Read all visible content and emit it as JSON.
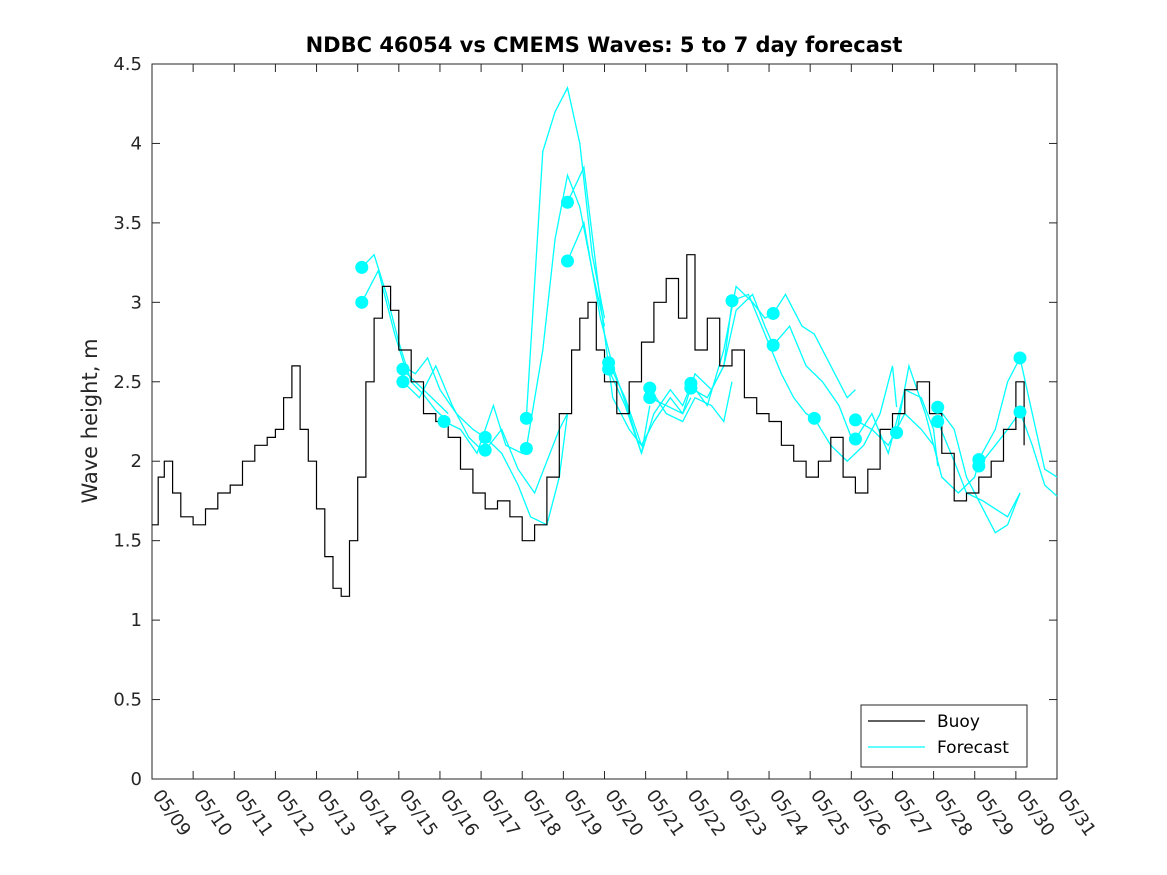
{
  "chart_data": {
    "type": "line",
    "title": "NDBC 46054 vs CMEMS Waves: 5 to 7 day forecast",
    "xlabel": "",
    "ylabel": "Wave height, m",
    "x_range": [
      0,
      22
    ],
    "ylim": [
      0,
      4.5
    ],
    "y_ticks": [
      0,
      0.5,
      1,
      1.5,
      2,
      2.5,
      3,
      3.5,
      4,
      4.5
    ],
    "y_tick_labels": [
      "0",
      "0.5",
      "1",
      "1.5",
      "2",
      "2.5",
      "3",
      "3.5",
      "4",
      "4.5"
    ],
    "x_ticks": [
      0,
      1,
      2,
      3,
      4,
      5,
      6,
      7,
      8,
      9,
      10,
      11,
      12,
      13,
      14,
      15,
      16,
      17,
      18,
      19,
      20,
      21,
      22
    ],
    "x_tick_labels": [
      "05/09",
      "05/10",
      "05/11",
      "05/12",
      "05/13",
      "05/14",
      "05/15",
      "05/16",
      "05/17",
      "05/18",
      "05/19",
      "05/20",
      "05/21",
      "05/22",
      "05/23",
      "05/24",
      "05/25",
      "05/26",
      "05/27",
      "05/28",
      "05/29",
      "05/30",
      "05/31"
    ],
    "grid": false,
    "legend_position": "bottom-right",
    "colors": {
      "buoy": "#000000",
      "forecast": "#00FFFF",
      "axis": "#262626"
    },
    "legend": [
      {
        "label": "Buoy",
        "color": "#000000"
      },
      {
        "label": "Forecast",
        "color": "#00FFFF"
      }
    ],
    "buoy": {
      "name": "Buoy",
      "t": [
        0,
        0.15,
        0.3,
        0.5,
        0.7,
        1.0,
        1.3,
        1.6,
        1.9,
        2.2,
        2.5,
        2.8,
        3.0,
        3.2,
        3.4,
        3.6,
        3.8,
        4.0,
        4.2,
        4.4,
        4.6,
        4.8,
        5.0,
        5.2,
        5.4,
        5.6,
        5.8,
        6.0,
        6.3,
        6.6,
        6.9,
        7.2,
        7.5,
        7.8,
        8.1,
        8.4,
        8.7,
        9.0,
        9.3,
        9.6,
        9.9,
        10.2,
        10.4,
        10.6,
        10.8,
        11.0,
        11.3,
        11.6,
        11.9,
        12.2,
        12.5,
        12.8,
        13.0,
        13.2,
        13.5,
        13.8,
        14.1,
        14.4,
        14.7,
        15.0,
        15.3,
        15.6,
        15.9,
        16.2,
        16.5,
        16.8,
        17.1,
        17.4,
        17.7,
        18.0,
        18.3,
        18.6,
        18.9,
        19.2,
        19.5,
        19.8,
        20.1,
        20.4,
        20.7,
        21.0,
        21.2
      ],
      "values": [
        1.6,
        1.9,
        2.0,
        1.8,
        1.65,
        1.6,
        1.7,
        1.8,
        1.85,
        2.0,
        2.1,
        2.15,
        2.2,
        2.4,
        2.6,
        2.2,
        2.0,
        1.7,
        1.4,
        1.2,
        1.15,
        1.5,
        1.9,
        2.5,
        2.9,
        3.1,
        2.95,
        2.7,
        2.5,
        2.3,
        2.25,
        2.15,
        1.95,
        1.8,
        1.7,
        1.75,
        1.65,
        1.5,
        1.6,
        1.9,
        2.3,
        2.7,
        2.9,
        3.0,
        2.7,
        2.5,
        2.3,
        2.5,
        2.75,
        3.0,
        3.15,
        2.9,
        3.3,
        2.7,
        2.9,
        2.6,
        2.7,
        2.4,
        2.3,
        2.25,
        2.1,
        2.0,
        1.9,
        2.0,
        2.15,
        1.9,
        1.8,
        1.95,
        2.2,
        2.3,
        2.45,
        2.5,
        2.3,
        2.05,
        1.75,
        1.8,
        1.9,
        2.0,
        2.2,
        2.5,
        2.1
      ]
    },
    "forecasts": [
      {
        "name": "Forecast",
        "t": [
          5.1,
          5.4,
          5.7,
          6.0,
          6.3,
          6.6,
          6.9,
          7.2
        ],
        "values": [
          3.22,
          3.3,
          3.05,
          2.75,
          2.5,
          2.42,
          2.32,
          2.25
        ]
      },
      {
        "name": "Forecast",
        "t": [
          5.1,
          5.5,
          5.9,
          6.2,
          6.6,
          7.0,
          7.2
        ],
        "values": [
          3.0,
          3.2,
          2.8,
          2.55,
          2.45,
          2.35,
          2.3
        ]
      },
      {
        "name": "Forecast",
        "t": [
          6.1,
          6.4,
          6.7,
          7.0,
          7.4,
          7.8,
          8.1
        ],
        "values": [
          2.6,
          2.55,
          2.65,
          2.45,
          2.3,
          2.2,
          2.15
        ]
      },
      {
        "name": "Forecast",
        "t": [
          6.1,
          6.5,
          6.9,
          7.3,
          7.7,
          8.1
        ],
        "values": [
          2.5,
          2.4,
          2.6,
          2.35,
          2.15,
          2.05
        ]
      },
      {
        "name": "Forecast",
        "t": [
          7.1,
          7.5,
          7.9,
          8.3,
          8.6,
          9.0,
          9.1
        ],
        "values": [
          2.25,
          2.2,
          2.05,
          2.35,
          2.1,
          2.05,
          2.08
        ]
      },
      {
        "name": "Forecast",
        "t": [
          8.1,
          8.5,
          8.9,
          9.2,
          9.6,
          9.9,
          10.1
        ],
        "values": [
          2.15,
          2.05,
          1.85,
          1.65,
          1.6,
          1.9,
          2.3
        ]
      },
      {
        "name": "Forecast",
        "t": [
          8.1,
          8.5,
          8.9,
          9.3,
          9.6,
          9.9,
          10.1
        ],
        "values": [
          2.07,
          2.2,
          1.95,
          1.8,
          2.0,
          2.2,
          2.3
        ]
      },
      {
        "name": "Forecast",
        "t": [
          9.1,
          9.5,
          9.8,
          10.1,
          10.4,
          10.7,
          11.0
        ],
        "values": [
          2.27,
          3.95,
          4.2,
          4.35,
          4.0,
          3.3,
          2.9
        ]
      },
      {
        "name": "Forecast",
        "t": [
          9.1,
          9.5,
          9.8,
          10.1,
          10.4,
          10.7,
          11.0
        ],
        "values": [
          2.08,
          2.7,
          3.4,
          3.8,
          3.6,
          3.2,
          2.85
        ]
      },
      {
        "name": "Forecast",
        "t": [
          10.1,
          10.5,
          10.9,
          11.2,
          11.6,
          11.9,
          12.1
        ],
        "values": [
          3.63,
          3.85,
          3.0,
          2.4,
          2.2,
          2.1,
          2.2
        ]
      },
      {
        "name": "Forecast",
        "t": [
          10.1,
          10.5,
          10.9,
          11.2,
          11.6,
          11.9,
          12.1
        ],
        "values": [
          3.26,
          3.5,
          2.9,
          2.6,
          2.3,
          2.05,
          2.35
        ]
      },
      {
        "name": "Forecast",
        "t": [
          11.1,
          11.5,
          11.9,
          12.2,
          12.6,
          12.9,
          13.1
        ],
        "values": [
          2.62,
          2.4,
          2.1,
          2.25,
          2.4,
          2.3,
          2.4
        ]
      },
      {
        "name": "Forecast",
        "t": [
          11.1,
          11.5,
          11.9,
          12.2,
          12.6,
          12.9,
          13.1
        ],
        "values": [
          2.58,
          2.35,
          2.05,
          2.3,
          2.45,
          2.35,
          2.48
        ]
      },
      {
        "name": "Forecast",
        "t": [
          12.1,
          12.5,
          12.9,
          13.2,
          13.6,
          13.9,
          14.1
        ],
        "values": [
          2.46,
          2.3,
          2.25,
          2.4,
          2.35,
          2.25,
          2.5
        ]
      },
      {
        "name": "Forecast",
        "t": [
          12.1,
          12.5,
          12.9,
          13.2,
          13.6,
          13.9,
          14.1
        ],
        "values": [
          2.4,
          2.35,
          2.3,
          2.55,
          2.45,
          2.6,
          3.0
        ]
      },
      {
        "name": "Forecast",
        "t": [
          13.1,
          13.5,
          13.9,
          14.2,
          14.6,
          14.9,
          15.1
        ],
        "values": [
          2.49,
          2.35,
          2.7,
          3.1,
          3.0,
          2.9,
          2.93
        ]
      },
      {
        "name": "Forecast",
        "t": [
          13.1,
          13.5,
          13.9,
          14.2,
          14.6,
          14.9,
          15.1
        ],
        "values": [
          2.46,
          2.4,
          2.6,
          2.95,
          3.05,
          2.85,
          2.73
        ]
      },
      {
        "name": "Forecast",
        "t": [
          14.1,
          14.5,
          14.9,
          15.3,
          15.6,
          15.9,
          16.1
        ],
        "values": [
          3.01,
          3.05,
          2.8,
          2.55,
          2.4,
          2.3,
          2.27
        ]
      },
      {
        "name": "Forecast",
        "t": [
          15.1,
          15.4,
          15.8,
          16.1,
          16.5,
          16.9,
          17.1
        ],
        "values": [
          2.93,
          3.05,
          2.85,
          2.8,
          2.6,
          2.4,
          2.45
        ]
      },
      {
        "name": "Forecast",
        "t": [
          15.1,
          15.5,
          15.9,
          16.3,
          16.7,
          17.0,
          17.1
        ],
        "values": [
          2.73,
          2.85,
          2.6,
          2.5,
          2.35,
          2.15,
          2.14
        ]
      },
      {
        "name": "Forecast",
        "t": [
          16.1,
          16.5,
          16.9,
          17.3,
          17.7,
          18.0,
          18.1
        ],
        "values": [
          2.27,
          2.1,
          2.0,
          2.1,
          2.3,
          2.6,
          2.34
        ]
      },
      {
        "name": "Forecast",
        "t": [
          17.1,
          17.5,
          17.9,
          18.3,
          18.7,
          19.0,
          19.1
        ],
        "values": [
          2.26,
          2.2,
          2.1,
          2.3,
          2.2,
          2.1,
          2.01
        ]
      },
      {
        "name": "Forecast",
        "t": [
          17.1,
          17.5,
          17.9,
          18.3,
          18.7,
          19.0,
          19.1
        ],
        "values": [
          2.14,
          2.3,
          2.05,
          2.45,
          2.4,
          2.2,
          1.97
        ]
      },
      {
        "name": "Forecast",
        "t": [
          18.1,
          18.4,
          18.8,
          19.2,
          19.6,
          20.0,
          20.1
        ],
        "values": [
          2.18,
          2.6,
          2.3,
          1.9,
          1.8,
          1.9,
          2.0
        ]
      },
      {
        "name": "Forecast",
        "t": [
          19.1,
          19.5,
          19.8,
          20.2,
          20.5,
          20.8,
          21.1
        ],
        "values": [
          2.34,
          2.2,
          1.9,
          1.7,
          1.55,
          1.6,
          1.8
        ]
      },
      {
        "name": "Forecast",
        "t": [
          19.1,
          19.5,
          19.8,
          20.2,
          20.5,
          20.8,
          21.1
        ],
        "values": [
          2.25,
          2.0,
          1.8,
          1.75,
          1.7,
          1.65,
          1.8
        ]
      },
      {
        "name": "Forecast",
        "t": [
          20.1,
          20.5,
          20.8,
          21.1,
          21.4,
          21.7,
          22.0
        ],
        "values": [
          2.01,
          2.2,
          2.5,
          2.65,
          2.3,
          1.95,
          1.9
        ]
      },
      {
        "name": "Forecast",
        "t": [
          20.1,
          20.5,
          20.8,
          21.1,
          21.4,
          21.7,
          22.0
        ],
        "values": [
          1.97,
          2.1,
          2.2,
          2.31,
          2.1,
          1.85,
          1.78
        ]
      }
    ],
    "forecast_markers": {
      "t": [
        5.1,
        5.1,
        6.1,
        6.1,
        7.1,
        8.1,
        8.1,
        9.1,
        9.1,
        10.1,
        10.1,
        11.1,
        11.1,
        12.1,
        12.1,
        13.1,
        13.1,
        14.1,
        15.1,
        15.1,
        16.1,
        17.1,
        17.1,
        18.1,
        19.1,
        19.1,
        20.1,
        20.1,
        21.1,
        21.1
      ],
      "values": [
        3.22,
        3.0,
        2.58,
        2.5,
        2.25,
        2.15,
        2.07,
        2.27,
        2.08,
        3.63,
        3.26,
        2.62,
        2.58,
        2.46,
        2.4,
        2.49,
        2.46,
        3.01,
        2.93,
        2.73,
        2.27,
        2.26,
        2.14,
        2.18,
        2.34,
        2.25,
        2.01,
        1.97,
        2.65,
        2.31
      ]
    }
  }
}
